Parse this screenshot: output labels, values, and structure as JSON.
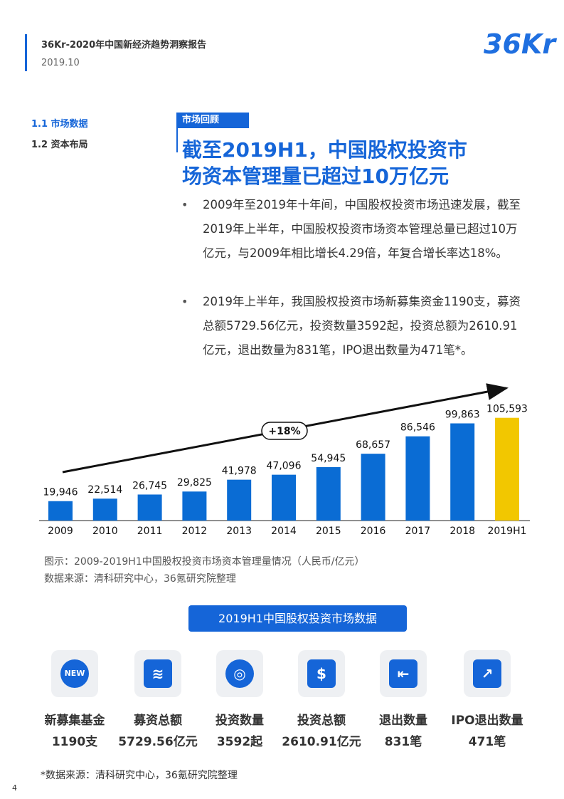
{
  "header": {
    "title": "36Kr-2020年中国新经济趋势洞察报告",
    "date": "2019.10",
    "logo": "36Kr"
  },
  "nav": [
    "1.1 市场数据",
    "1.2 资本布局"
  ],
  "section": {
    "tag": "市场回顾",
    "heading": [
      "截至2019H1，中国股权投资市",
      "场资本管理量已超过10万亿元"
    ],
    "bullets": [
      "2009年至2019年十年间，中国股权投资市场迅速发展，截至2019年上半年，中国股权投资市场资本管理总量已超过10万亿元，与2009年相比增长4.29倍，年复合增长率达18%。",
      "2019年上半年，我国股权投资市场新募集资金1190支，募资总额5729.56亿元，投资数量3592起，投资总额为2610.91亿元，退出数量为831笔，IPO退出数量为471笔*。"
    ]
  },
  "chart_data": {
    "type": "bar",
    "categories": [
      "2009",
      "2010",
      "2011",
      "2012",
      "2013",
      "2014",
      "2015",
      "2016",
      "2017",
      "2018",
      "2019H1"
    ],
    "values": [
      19946,
      22514,
      26745,
      29825,
      41978,
      47096,
      54945,
      68657,
      86546,
      99863,
      105593
    ],
    "value_labels": [
      "19,946",
      "22,514",
      "26,745",
      "29,825",
      "41,978",
      "47,096",
      "54,945",
      "68,657",
      "86,546",
      "99,863",
      "105,593"
    ],
    "colors": [
      "#0a6cd4",
      "#0a6cd4",
      "#0a6cd4",
      "#0a6cd4",
      "#0a6cd4",
      "#0a6cd4",
      "#0a6cd4",
      "#0a6cd4",
      "#0a6cd4",
      "#0a6cd4",
      "#f2c700"
    ],
    "ylim": [
      0,
      120000
    ],
    "annotation": "+18%",
    "caption": "图示：2009-2019H1中国股权投资市场资本管理量情况（人民币/亿元）",
    "source": "数据来源：清科研究中心，36氪研究院整理"
  },
  "stats": {
    "title": "2019H1中国股权投资市场数据",
    "items": [
      {
        "label": "新募集基金",
        "value": "1190支"
      },
      {
        "label": "募资总额",
        "value": "5729.56亿元"
      },
      {
        "label": "投资数量",
        "value": "3592起"
      },
      {
        "label": "投资总额",
        "value": "2610.91亿元"
      },
      {
        "label": "退出数量",
        "value": "831笔"
      },
      {
        "label": "IPO退出数量",
        "value": "471笔"
      }
    ]
  },
  "footnote": "*数据来源：清科研究中心，36氪研究院整理",
  "page_number": "4"
}
